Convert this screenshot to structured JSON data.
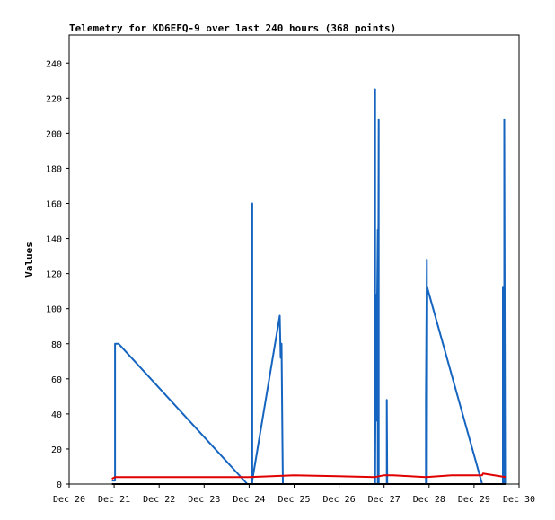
{
  "chart_data": {
    "type": "line",
    "title": "Telemetry for KD6EFQ-9 over last 240 hours (368 points)",
    "xlabel": "",
    "ylabel": "Values",
    "xlim": [
      20,
      30
    ],
    "ylim": [
      0,
      256
    ],
    "x_ticks": [
      20,
      21,
      22,
      23,
      24,
      25,
      26,
      27,
      28,
      29,
      30
    ],
    "x_tick_labels": [
      "Dec 20",
      "Dec 21",
      "Dec 22",
      "Dec 23",
      "Dec 24",
      "Dec 25",
      "Dec 26",
      "Dec 27",
      "Dec 28",
      "Dec 29",
      "Dec 30"
    ],
    "y_ticks": [
      0,
      20,
      40,
      60,
      80,
      100,
      120,
      140,
      160,
      180,
      200,
      220,
      240
    ],
    "grid": false,
    "colors": {
      "blue": "#1565c0",
      "red": "#e00000",
      "black": "#000000"
    },
    "series": [
      {
        "color": "#1565c0",
        "x": [
          20.95,
          21.02,
          21.02,
          21.1,
          23.96,
          24.07,
          24.07,
          24.07,
          24.68,
          24.7,
          24.72,
          24.74,
          24.75,
          24.76,
          24.77,
          26.8,
          26.8,
          26.8,
          26.82,
          26.82,
          26.86,
          26.86,
          26.88,
          26.88,
          26.9,
          27.06,
          27.06,
          27.07,
          27.93,
          27.93,
          27.95,
          27.95,
          27.96,
          29.18,
          29.64,
          29.64,
          29.67,
          29.67,
          29.69
        ],
        "y": [
          2,
          2,
          80,
          80,
          0,
          0,
          160,
          2,
          96,
          72,
          80,
          24,
          0,
          0,
          0,
          0,
          225,
          0,
          108,
          36,
          145,
          0,
          208,
          0,
          0,
          0,
          48,
          0,
          0,
          48,
          128,
          0,
          112,
          0,
          0,
          112,
          0,
          208,
          0
        ]
      },
      {
        "color": "#e00000",
        "x": [
          20.95,
          21.02,
          24.0,
          25.0,
          26.8,
          27.0,
          27.2,
          27.93,
          28.5,
          29.18,
          29.2,
          29.7
        ],
        "y": [
          3,
          4,
          4,
          5,
          4,
          5,
          5,
          4,
          5,
          5,
          6,
          4
        ]
      },
      {
        "color": "#000000",
        "x": [
          20.95,
          29.7
        ],
        "y": [
          0,
          0
        ]
      }
    ]
  }
}
